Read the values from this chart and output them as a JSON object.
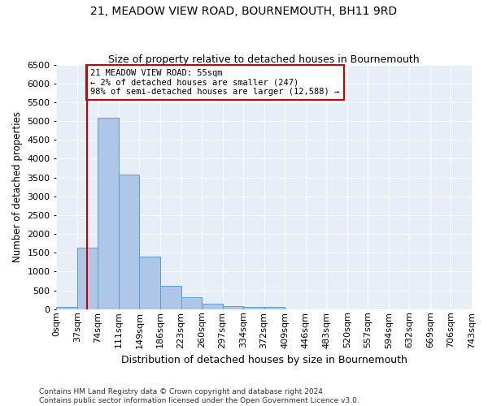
{
  "title": "21, MEADOW VIEW ROAD, BOURNEMOUTH, BH11 9RD",
  "subtitle": "Size of property relative to detached houses in Bournemouth",
  "xlabel": "Distribution of detached houses by size in Bournemouth",
  "ylabel": "Number of detached properties",
  "bar_values": [
    70,
    1630,
    5080,
    3580,
    1400,
    620,
    310,
    150,
    80,
    55,
    60,
    0,
    0,
    0,
    0,
    0,
    0,
    0,
    0,
    0
  ],
  "bar_labels": [
    "0sqm",
    "37sqm",
    "74sqm",
    "111sqm",
    "149sqm",
    "186sqm",
    "223sqm",
    "260sqm",
    "297sqm",
    "334sqm",
    "372sqm",
    "409sqm",
    "446sqm",
    "483sqm",
    "520sqm",
    "557sqm",
    "594sqm",
    "632sqm",
    "669sqm",
    "706sqm",
    "743sqm"
  ],
  "bar_color": "#aec6e8",
  "bar_edge_color": "#5a9fd4",
  "property_line_color": "#cc0000",
  "annotation_text": "21 MEADOW VIEW ROAD: 55sqm\n← 2% of detached houses are smaller (247)\n98% of semi-detached houses are larger (12,588) →",
  "annotation_box_color": "#ffffff",
  "annotation_box_edge_color": "#cc0000",
  "ylim": [
    0,
    6500
  ],
  "yticks": [
    0,
    500,
    1000,
    1500,
    2000,
    2500,
    3000,
    3500,
    4000,
    4500,
    5000,
    5500,
    6000,
    6500
  ],
  "background_color": "#e8eef8",
  "footer_text": "Contains HM Land Registry data © Crown copyright and database right 2024.\nContains public sector information licensed under the Open Government Licence v3.0.",
  "title_fontsize": 10,
  "subtitle_fontsize": 9,
  "xlabel_fontsize": 9,
  "ylabel_fontsize": 8.5,
  "tick_fontsize": 8,
  "annotation_fontsize": 7.5,
  "footer_fontsize": 6.5
}
